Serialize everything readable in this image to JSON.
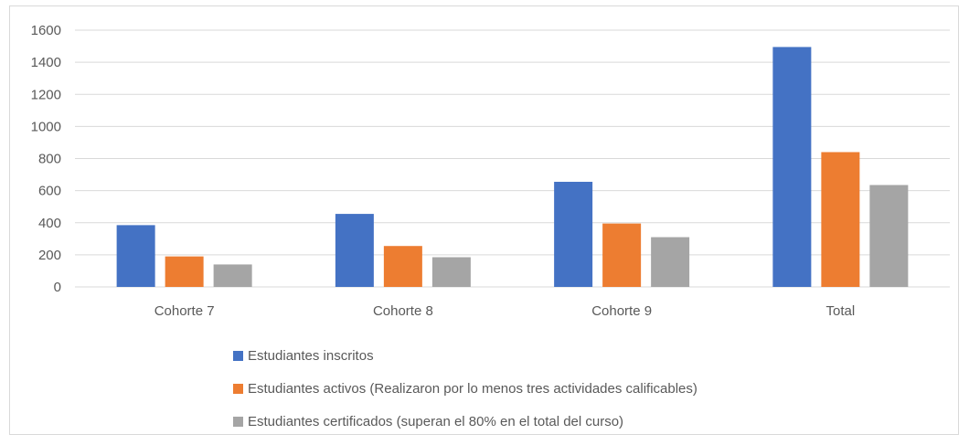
{
  "chart_data": {
    "type": "bar",
    "categories": [
      "Cohorte 7",
      "Cohorte 8",
      "Cohorte 9",
      "Total"
    ],
    "series": [
      {
        "name": "Estudiantes inscritos",
        "color": "#4472c4",
        "values": [
          385,
          455,
          655,
          1495
        ]
      },
      {
        "name": "Estudiantes activos (Realizaron por lo menos tres actividades calificables)",
        "color": "#ed7d31",
        "values": [
          190,
          255,
          395,
          840
        ]
      },
      {
        "name": "Estudiantes certificados (superan el 80% en el total del curso)",
        "color": "#a5a5a5",
        "values": [
          140,
          185,
          310,
          635
        ]
      }
    ],
    "y_ticks": [
      "0",
      "200",
      "400",
      "600",
      "800",
      "1000",
      "1200",
      "1400",
      "1600"
    ],
    "ylim": [
      0,
      1600
    ],
    "grid": true,
    "legend_position": "bottom",
    "title": "",
    "xlabel": "",
    "ylabel": ""
  }
}
